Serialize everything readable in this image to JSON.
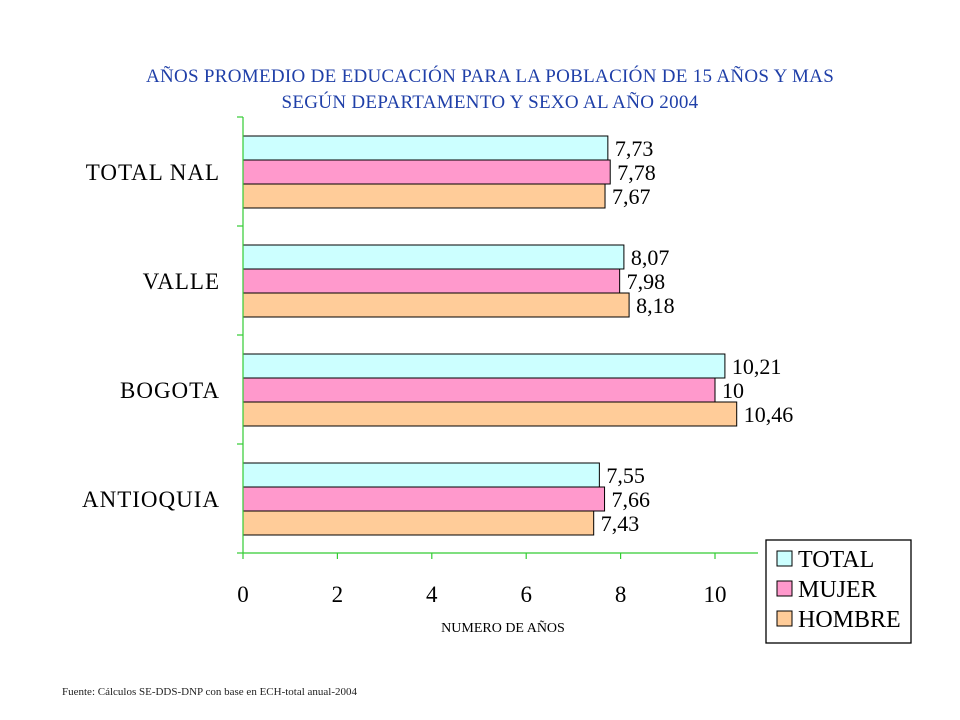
{
  "title_line1": "AÑOS PROMEDIO DE EDUCACIÓN PARA LA POBLACIÓN DE 15 AÑOS Y MAS",
  "title_line2": "SEGÚN DEPARTAMENTO Y SEXO AL AÑO 2004",
  "source": "Fuente: Cálculos SE-DDS-DNP   con base en ECH-total anual-2004",
  "colors": {
    "axis": "#33cc33",
    "title": "#1f3fa8"
  },
  "chart_data": {
    "type": "bar",
    "orientation": "horizontal",
    "title": "AÑOS PROMEDIO DE EDUCACIÓN PARA LA POBLACIÓN DE 15 AÑOS Y MAS SEGÚN DEPARTAMENTO Y SEXO AL AÑO 2004",
    "xlabel": "NUMERO DE AÑOS",
    "ylabel": "",
    "xlim": [
      0,
      10.9
    ],
    "xticks": [
      0,
      2,
      4,
      6,
      8,
      10
    ],
    "categories": [
      "TOTAL NAL",
      "VALLE",
      "BOGOTA",
      "ANTIOQUIA"
    ],
    "series": [
      {
        "name": "TOTAL",
        "color": "#ccffff",
        "values": [
          7.73,
          8.07,
          10.21,
          7.55
        ],
        "labels": [
          "7,73",
          "8,07",
          "10,21",
          "7,55"
        ]
      },
      {
        "name": "MUJER",
        "color": "#ff99cc",
        "values": [
          7.78,
          7.98,
          10,
          7.66
        ],
        "labels": [
          "7,78",
          "7,98",
          "10",
          "7,66"
        ]
      },
      {
        "name": "HOMBRE",
        "color": "#ffcc99",
        "values": [
          7.67,
          8.18,
          10.46,
          7.43
        ],
        "labels": [
          "7,67",
          "8,18",
          "10,46",
          "7,43"
        ]
      }
    ],
    "legend": "bottom-right",
    "grid": false
  }
}
